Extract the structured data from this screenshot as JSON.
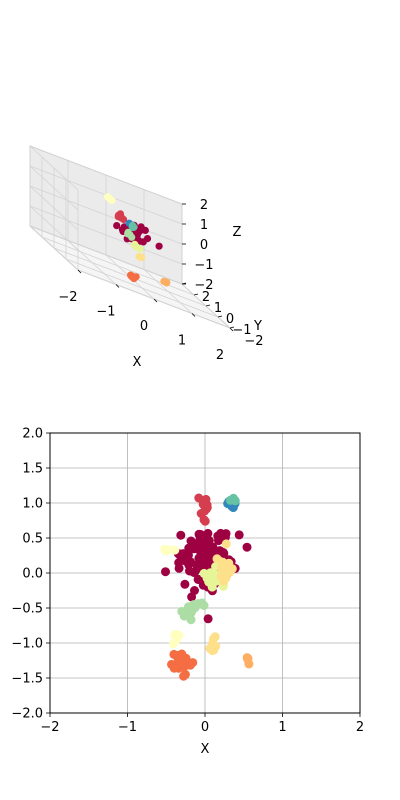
{
  "chart_data": [
    {
      "type": "scatter3d",
      "xlabel": "X",
      "ylabel": "Y",
      "zlabel": "Z",
      "xlim": [
        -2,
        2
      ],
      "ylim": [
        -2,
        2
      ],
      "zlim": [
        -2,
        2
      ],
      "x_ticks": [
        "−2",
        "−1",
        "0",
        "1",
        "2"
      ],
      "y_ticks": [
        "−2",
        "−1",
        "0",
        "1",
        "2"
      ],
      "z_ticks": [
        "−2",
        "−1",
        "0",
        "1",
        "2"
      ],
      "grid": true,
      "clusters": [
        {
          "color": "#9e0142",
          "x": 0.15,
          "y": 0.2,
          "z": 0.15,
          "spread": 0.18,
          "count": 40
        },
        {
          "color": "#d53e4f",
          "x": 0.05,
          "y": 1.0,
          "z": 0.5,
          "spread": 0.05,
          "count": 6
        },
        {
          "color": "#3288bd",
          "x": 0.35,
          "y": 1.0,
          "z": 0.3,
          "spread": 0.04,
          "count": 5
        },
        {
          "color": "#66c2a5",
          "x": 0.4,
          "y": 1.05,
          "z": 0.2,
          "spread": 0.03,
          "count": 3
        },
        {
          "color": "#abdda4",
          "x": -0.2,
          "y": -0.55,
          "z": 0.3,
          "spread": 0.05,
          "count": 5
        },
        {
          "color": "#e6f598",
          "x": 0.1,
          "y": -0.1,
          "z": -0.3,
          "spread": 0.06,
          "count": 6
        },
        {
          "color": "#fee08b",
          "x": 0.3,
          "y": 0.1,
          "z": -0.8,
          "spread": 0.05,
          "count": 4
        },
        {
          "color": "#ffffbf",
          "x": -0.45,
          "y": 0.3,
          "z": 1.4,
          "spread": 0.04,
          "count": 4
        },
        {
          "color": "#fdae61",
          "x": 0.55,
          "y": -1.2,
          "z": -1.2,
          "spread": 0.03,
          "count": 3
        },
        {
          "color": "#f46d43",
          "x": -0.35,
          "y": -1.3,
          "z": -1.5,
          "spread": 0.06,
          "count": 7
        }
      ]
    },
    {
      "type": "scatter",
      "xlabel": "X",
      "ylabel": "",
      "xlim": [
        -2,
        2
      ],
      "ylim": [
        -2,
        2
      ],
      "x_ticks": [
        -2,
        -1,
        0,
        1,
        2
      ],
      "y_ticks": [
        -2.0,
        -1.5,
        -1.0,
        -0.5,
        0.0,
        0.5,
        1.0,
        1.5,
        2.0
      ],
      "grid": true,
      "clusters": [
        {
          "color": "#9e0142",
          "x": 0.05,
          "y": 0.2,
          "sx": 0.16,
          "sy": 0.2,
          "count": 140
        },
        {
          "color": "#d53e4f",
          "x": -0.02,
          "y": 0.95,
          "sx": 0.04,
          "sy": 0.1,
          "count": 10
        },
        {
          "color": "#3288bd",
          "x": 0.33,
          "y": 1.02,
          "sx": 0.03,
          "sy": 0.05,
          "count": 8
        },
        {
          "color": "#66c2a5",
          "x": 0.38,
          "y": 1.06,
          "sx": 0.02,
          "sy": 0.02,
          "count": 3
        },
        {
          "color": "#abdda4",
          "x": -0.2,
          "y": -0.55,
          "sx": 0.06,
          "sy": 0.06,
          "count": 12
        },
        {
          "color": "#abdda4",
          "x": -0.05,
          "y": -0.45,
          "sx": 0.03,
          "sy": 0.02,
          "count": 3
        },
        {
          "color": "#e6f598",
          "x": 0.1,
          "y": -0.1,
          "sx": 0.07,
          "sy": 0.1,
          "count": 22
        },
        {
          "color": "#fee08b",
          "x": 0.27,
          "y": 0.1,
          "sx": 0.05,
          "sy": 0.1,
          "count": 14
        },
        {
          "color": "#ffffbf",
          "x": -0.47,
          "y": 0.33,
          "sx": 0.04,
          "sy": 0.02,
          "count": 5
        },
        {
          "color": "#ffffbf",
          "x": -0.38,
          "y": -0.9,
          "sx": 0.02,
          "sy": 0.06,
          "count": 6
        },
        {
          "color": "#fee08b",
          "x": 0.1,
          "y": -1.05,
          "sx": 0.02,
          "sy": 0.08,
          "count": 8
        },
        {
          "color": "#fdae61",
          "x": 0.55,
          "y": -1.18,
          "sx": 0.01,
          "sy": 0.05,
          "count": 4
        },
        {
          "color": "#f46d43",
          "x": -0.3,
          "y": -1.3,
          "sx": 0.07,
          "sy": 0.1,
          "count": 22
        }
      ]
    }
  ]
}
